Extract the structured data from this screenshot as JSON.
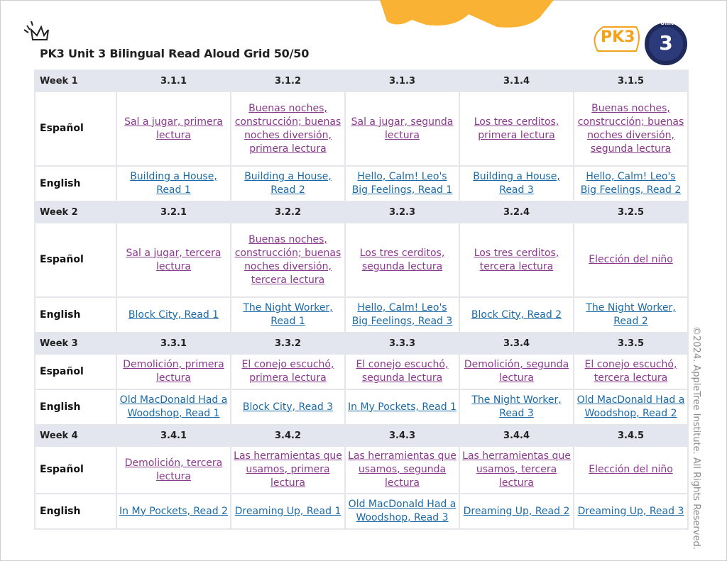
{
  "header": {
    "title": "PK3 Unit 3 Bilingual Read Aloud Grid 50/50",
    "logo_text": "PK3",
    "badge_label": "Unit",
    "badge_number": "3"
  },
  "weeks": [
    {
      "label": "Week 1",
      "codes": [
        "3.1.1",
        "3.1.2",
        "3.1.3",
        "3.1.4",
        "3.1.5"
      ],
      "spanish_label": "Español",
      "spanish": [
        "Sal a jugar, primera lectura",
        "Buenas noches, construcción; buenas noches diversión, primera lectura",
        "Sal a jugar, segunda lectura",
        "Los tres cerditos, primera lectura",
        "Buenas noches, construcción; buenas noches diversión, segunda lectura"
      ],
      "english_label": "English",
      "english": [
        "Building a House, Read 1",
        "Building a House, Read 2",
        "Hello, Calm! Leo's Big Feelings, Read 1",
        "Building a House, Read 3",
        "Hello, Calm! Leo's Big Feelings, Read 2"
      ]
    },
    {
      "label": "Week 2",
      "codes": [
        "3.2.1",
        "3.2.2",
        "3.2.3",
        "3.2.4",
        "3.2.5"
      ],
      "spanish_label": "Español",
      "spanish": [
        "Sal a jugar, tercera lectura",
        "Buenas noches, construcción; buenas noches diversión, tercera lectura",
        "Los tres cerditos, segunda lectura",
        "Los tres cerditos, tercera lectura",
        "Elección del niño"
      ],
      "english_label": "English",
      "english": [
        "Block City, Read 1",
        "The Night Worker, Read 1",
        "Hello, Calm! Leo's Big Feelings, Read 3",
        "Block City, Read 2",
        "The Night Worker, Read 2"
      ]
    },
    {
      "label": "Week 3",
      "codes": [
        "3.3.1",
        "3.3.2",
        "3.3.3",
        "3.3.4",
        "3.3.5"
      ],
      "spanish_label": "Español",
      "spanish": [
        "Demolición, primera lectura",
        "El conejo escuchó, primera lectura",
        "El conejo escuchó, segunda lectura",
        "Demolición, segunda lectura",
        "El conejo escuchó, tercera lectura"
      ],
      "english_label": "English",
      "english": [
        "Old MacDonald Had a Woodshop, Read 1",
        "Block City, Read 3",
        "In My Pockets, Read 1",
        "The Night Worker, Read 3",
        "Old MacDonald Had a Woodshop, Read 2"
      ]
    },
    {
      "label": "Week 4",
      "codes": [
        "3.4.1",
        "3.4.2",
        "3.4.3",
        "3.4.4",
        "3.4.5"
      ],
      "spanish_label": "Español",
      "spanish": [
        "Demolición, tercera lectura",
        "Las herramientas que usamos, primera lectura",
        "Las herramientas que usamos, segunda lectura",
        "Las herramientas que usamos, tercera lectura",
        "Elección del niño"
      ],
      "english_label": "English",
      "english": [
        "In My Pockets, Read 2",
        "Dreaming Up, Read 1",
        "Old MacDonald Had a Woodshop, Read 3",
        "Dreaming Up, Read 2",
        "Dreaming Up, Read 3"
      ]
    }
  ],
  "footer": {
    "copyright": "©2024. AppleTree Institute. All Rights Reserved."
  }
}
